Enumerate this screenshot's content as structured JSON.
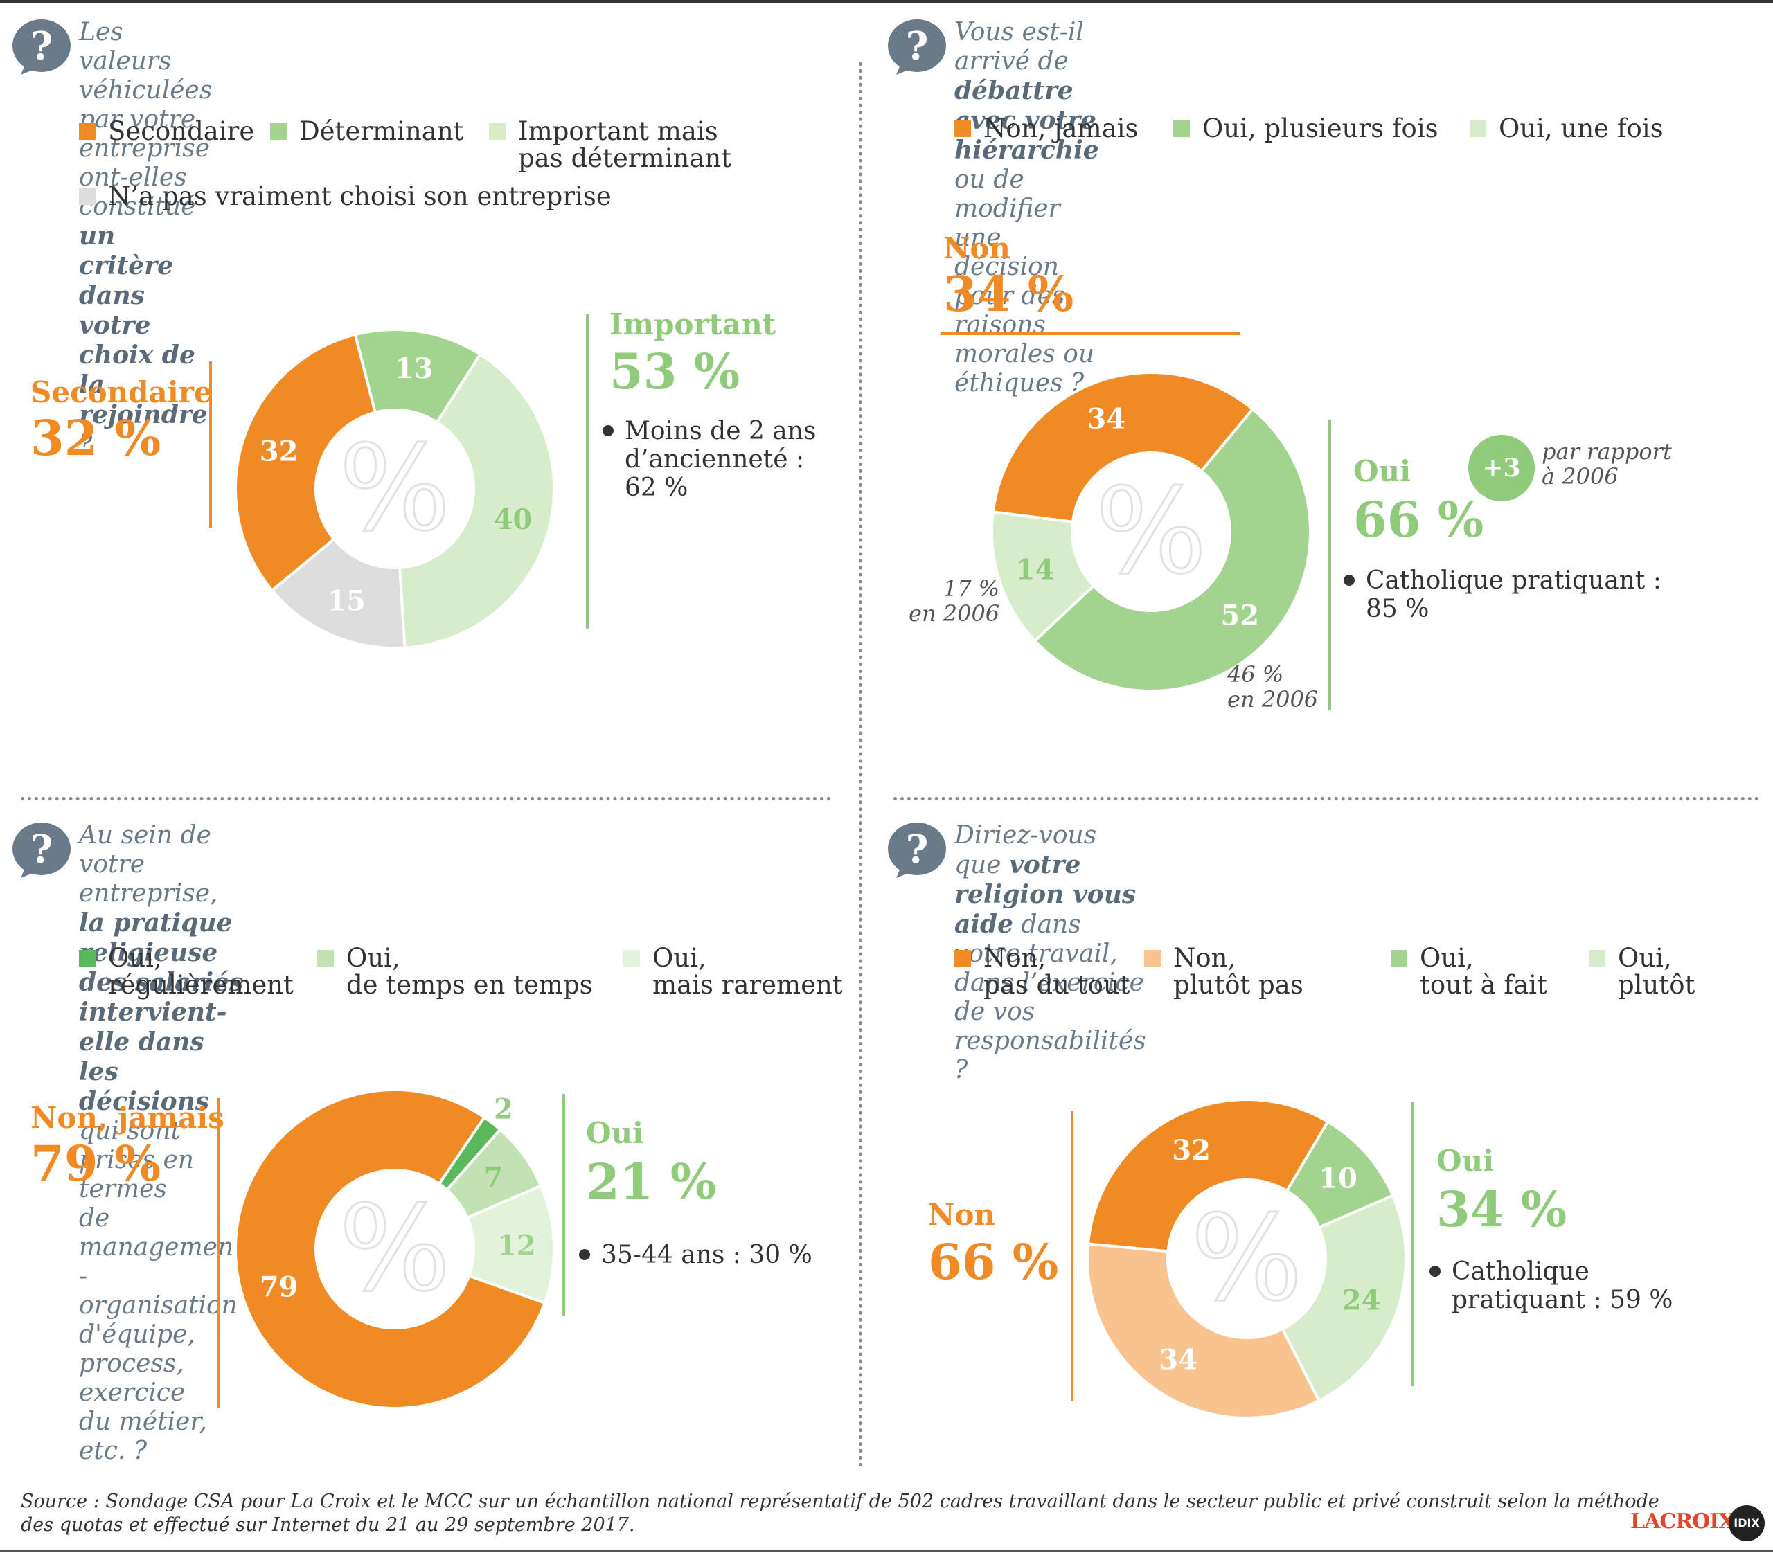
{
  "colors": {
    "orange": "#f08a24",
    "green_dark": "#5cb85c",
    "green": "#a3d48f",
    "green_light": "#d6ecca",
    "grey": "#dddddd",
    "orange_light": "#f8c38f",
    "text_orange": "#f08a24",
    "text_green": "#8fcb7a"
  },
  "panels": [
    {
      "question_parts": [
        {
          "text": "Les valeurs véhiculées par votre entreprise ont-elles constitué",
          "bold": false,
          "br": true
        },
        {
          "text": "un critère dans votre choix de la rejoindre",
          "bold": true,
          "br": false
        },
        {
          "text": " ?",
          "bold": false,
          "br": false
        }
      ],
      "legend": [
        {
          "label": "Secondaire",
          "color": "#f08a24"
        },
        {
          "label": "Déterminant",
          "color": "#a3d48f"
        },
        {
          "label": "Important mais\npas déterminant",
          "color": "#d6ecca"
        },
        {
          "label": "N’a pas vraiment choisi son entreprise",
          "color": "#dddddd"
        }
      ],
      "left_label": "Secondaire",
      "left_pct": "32 %",
      "right_label": "Important",
      "right_pct": "53 %",
      "note": "Moins de 2 ans\nd’ancienneté :\n62 %"
    },
    {
      "question_parts": [
        {
          "text": "Vous est-il arrivé de ",
          "bold": false,
          "br": false
        },
        {
          "text": "débattre avec votre hiérarchie",
          "bold": true,
          "br": false
        },
        {
          "text": " ou de modifier",
          "bold": false,
          "br": true
        },
        {
          "text": "une décision pour des raisons morales ou éthiques ?",
          "bold": false,
          "br": false
        }
      ],
      "legend": [
        {
          "label": "Non, jamais",
          "color": "#f08a24"
        },
        {
          "label": "Oui, plusieurs fois",
          "color": "#a3d48f"
        },
        {
          "label": "Oui, une fois",
          "color": "#d6ecca"
        }
      ],
      "left_label": "Non",
      "left_pct": "34 %",
      "right_label": "Oui",
      "right_pct": "66 %",
      "badge": "+3",
      "badge_text": "par rapport\nà 2006",
      "note": "Catholique pratiquant :\n85 %",
      "hist_1": "17 %\nen 2006",
      "hist_2": "46 %\nen 2006"
    },
    {
      "question_parts": [
        {
          "text": "Au sein de votre entreprise, ",
          "bold": false,
          "br": false
        },
        {
          "text": "la pratique religieuse des salariés",
          "bold": true,
          "br": true
        },
        {
          "text": "intervient-elle dans les décisions",
          "bold": true,
          "br": false
        },
        {
          "text": " qui sont prises en termes",
          "bold": false,
          "br": true
        },
        {
          "text": "de management - organisation d'équipe, process, exercice",
          "bold": false,
          "br": true
        },
        {
          "text": "du métier, etc. ?",
          "bold": false,
          "br": false
        }
      ],
      "legend": [
        {
          "label": "Oui,\nrégulièrement",
          "color": "#5cb85c"
        },
        {
          "label": "Oui,\nde temps en temps",
          "color": "#c3e2b3"
        },
        {
          "label": "Oui,\nmais rarement",
          "color": "#e3f2db"
        }
      ],
      "left_label": "Non, jamais",
      "left_pct": "79 %",
      "right_label": "Oui",
      "right_pct": "21 %",
      "note": "35-44 ans : 30 %"
    },
    {
      "question_parts": [
        {
          "text": "Diriez-vous que ",
          "bold": false,
          "br": false
        },
        {
          "text": "votre religion vous aide",
          "bold": true,
          "br": false
        },
        {
          "text": " dans votre travail,",
          "bold": false,
          "br": true
        },
        {
          "text": "dans l’exercice de vos responsabilités ?",
          "bold": false,
          "br": false
        }
      ],
      "legend": [
        {
          "label": "Non,\npas du tout",
          "color": "#f08a24"
        },
        {
          "label": "Non,\nplutôt pas",
          "color": "#f8c38f"
        },
        {
          "label": "Oui,\ntout à fait",
          "color": "#a3d48f"
        },
        {
          "label": "Oui,\nplutôt",
          "color": "#d6ecca"
        }
      ],
      "left_label": "Non",
      "left_pct": "66 %",
      "right_label": "Oui",
      "right_pct": "34 %",
      "note": "Catholique\npratiquant : 59 %"
    }
  ],
  "chart_data": [
    {
      "type": "pie",
      "title": "Les valeurs véhiculées par votre entreprise ont-elles constitué un critère dans votre choix de la rejoindre ?",
      "slices": [
        {
          "label": "Déterminant",
          "value": 13,
          "color": "#a3d48f",
          "text_color": "#ffffff"
        },
        {
          "label": "Important mais pas déterminant",
          "value": 40,
          "color": "#d6ecca",
          "text_color": "#8fcb7a"
        },
        {
          "label": "N’a pas vraiment choisi son entreprise",
          "value": 15,
          "color": "#dddddd",
          "text_color": "#ffffff"
        },
        {
          "label": "Secondaire",
          "value": 32,
          "color": "#f08a24",
          "text_color": "#ffffff"
        }
      ],
      "center_symbol": "%"
    },
    {
      "type": "pie",
      "title": "Vous est-il arrivé de débattre avec votre hiérarchie ou de modifier une décision pour des raisons morales ou éthiques ?",
      "slices": [
        {
          "label": "Oui, plusieurs fois",
          "value": 52,
          "color": "#a3d48f",
          "text_color": "#ffffff"
        },
        {
          "label": "Oui, une fois",
          "value": 14,
          "color": "#d6ecca",
          "text_color": "#8fcb7a"
        },
        {
          "label": "Non, jamais",
          "value": 34,
          "color": "#f08a24",
          "text_color": "#ffffff"
        }
      ],
      "center_symbol": "%"
    },
    {
      "type": "pie",
      "title": "Au sein de votre entreprise, la pratique religieuse des salariés intervient-elle dans les décisions qui sont prises en termes de management - organisation d'équipe, process, exercice du métier, etc. ?",
      "slices": [
        {
          "label": "Oui, régulièrement",
          "value": 2,
          "color": "#5cb85c",
          "text_color": "#8fcb7a"
        },
        {
          "label": "Oui, de temps en temps",
          "value": 7,
          "color": "#c3e2b3",
          "text_color": "#8fcb7a"
        },
        {
          "label": "Oui, mais rarement",
          "value": 12,
          "color": "#e3f2db",
          "text_color": "#a3d48f"
        },
        {
          "label": "Non, jamais",
          "value": 79,
          "color": "#f08a24",
          "text_color": "#ffffff"
        }
      ],
      "center_symbol": "%"
    },
    {
      "type": "pie",
      "title": "Diriez-vous que votre religion vous aide dans votre travail, dans l’exercice de vos responsabilités ?",
      "slices": [
        {
          "label": "Oui, tout à fait",
          "value": 10,
          "color": "#a3d48f",
          "text_color": "#ffffff"
        },
        {
          "label": "Oui, plutôt",
          "value": 24,
          "color": "#d6ecca",
          "text_color": "#8fcb7a"
        },
        {
          "label": "Non, plutôt pas",
          "value": 34,
          "color": "#f8c38f",
          "text_color": "#ffffff"
        },
        {
          "label": "Non, pas du tout",
          "value": 32,
          "color": "#f08a24",
          "text_color": "#ffffff"
        }
      ],
      "center_symbol": "%"
    }
  ],
  "source": "Source : Sondage CSA pour La Croix et le MCC sur un échantillon national représentatif de 502 cadres travaillant dans le secteur public et privé construit selon la méthode\ndes quotas et effectué sur Internet du 21 au 29 septembre 2017.",
  "logo": "LACROIX",
  "logo_badge": "IDIX"
}
